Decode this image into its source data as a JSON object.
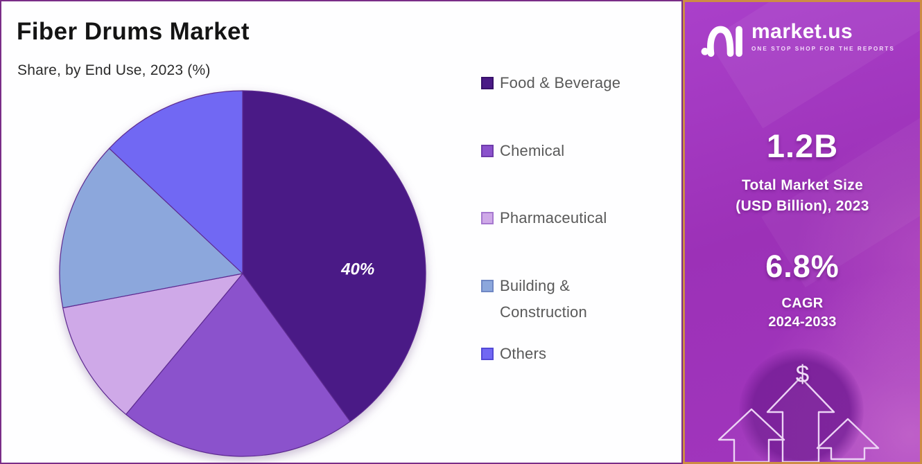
{
  "chart_data": {
    "type": "pie",
    "title": "Fiber Drums Market",
    "subtitle": "Share, by End Use, 2023 (%)",
    "value_unit": "%",
    "start_angle_deg": 0,
    "direction": "clockwise",
    "legend_position": "right",
    "slice_border_color": "#5d2a90",
    "slices": [
      {
        "label": "Food & Beverage",
        "value": 40,
        "color": "#4a1a86",
        "swatch_border": "#37106a",
        "data_label": "40%",
        "label_angle_deg": 88,
        "label_radius_frac": 0.63
      },
      {
        "label": "Chemical",
        "value": 21,
        "color": "#8b52cc",
        "swatch_border": "#6e3bab",
        "data_label": ""
      },
      {
        "label": "Pharmaceutical",
        "value": 11,
        "color": "#cfa9e8",
        "swatch_border": "#a678cf",
        "data_label": ""
      },
      {
        "label": "Building & Construction",
        "value": 15,
        "color": "#8ca7dc",
        "swatch_border": "#6f87c4",
        "data_label": ""
      },
      {
        "label": "Others",
        "value": 13,
        "color": "#7168f3",
        "swatch_border": "#5349d6",
        "data_label": ""
      }
    ],
    "note": "Only the Food & Beverage slice shows an on-chart data label (40%); other slice values estimated from measured slice angles."
  },
  "sidebar": {
    "brand": {
      "name": "market.us",
      "tagline": "ONE STOP SHOP FOR THE REPORTS"
    },
    "stat_market_size": {
      "value": "1.2B",
      "label_line1": "Total Market Size",
      "label_line2": "(USD Billion), 2023"
    },
    "stat_cagr": {
      "value": "6.8%",
      "label_line1": "CAGR",
      "label_line2": "2024-2033"
    },
    "dollar_symbol": "$",
    "colors": {
      "background_top": "#aa40ca",
      "background_bottom": "#a136bd",
      "border": "#cd8c44",
      "text": "#ffffff"
    }
  },
  "colors": {
    "chart_background": "#fefeff",
    "chart_border": "#7a2d87",
    "title_text": "#141414",
    "legend_text": "#595959"
  }
}
